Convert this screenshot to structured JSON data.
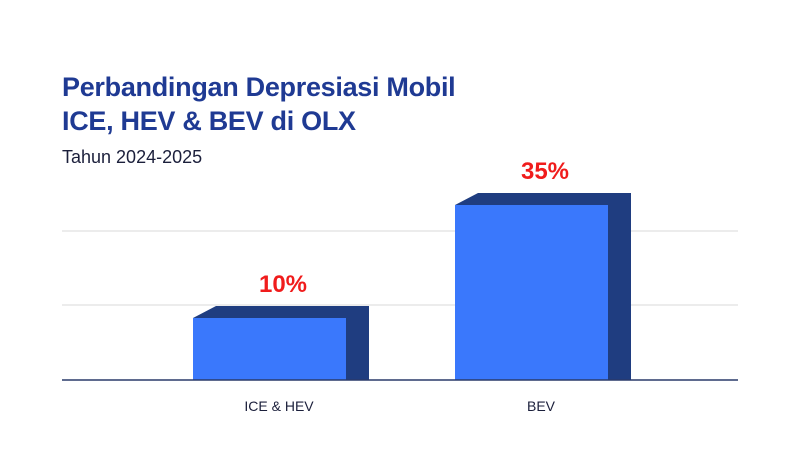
{
  "chart_data": {
    "type": "bar",
    "title_line1": "Perbandingan Depresiasi Mobil",
    "title_line2": "ICE, HEV & BEV di OLX",
    "subtitle": "Tahun 2024-2025",
    "categories": [
      "ICE & HEV",
      "BEV"
    ],
    "values": [
      10,
      35
    ],
    "data_labels": [
      "10%",
      "35%"
    ],
    "grid": true,
    "colors": {
      "bar_front": "#3a78fc",
      "bar_side": "#1f3d80",
      "label": "#f01c1c",
      "title": "#1f3a93",
      "grid": "#d8d8d8",
      "axis": "#2a3a6a"
    }
  }
}
